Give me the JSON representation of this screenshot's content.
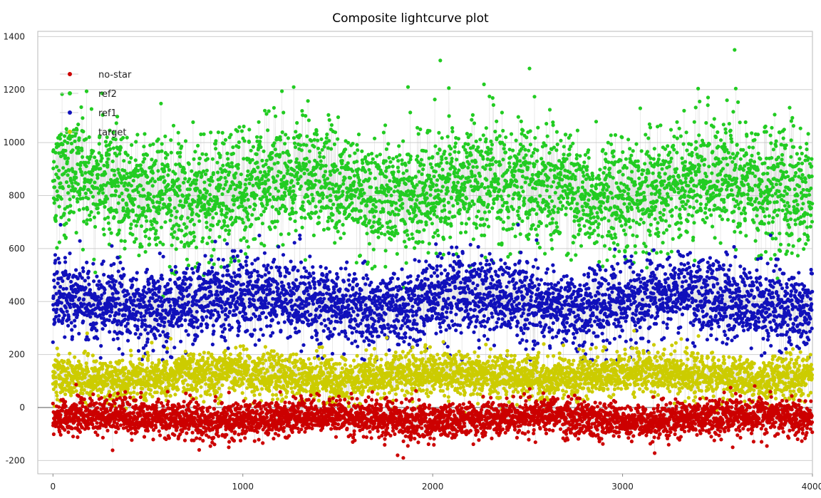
{
  "chart_data": {
    "type": "scatter",
    "title": "Composite lightcurve plot",
    "xlabel": "",
    "ylabel": "",
    "xlim": [
      -80,
      4000
    ],
    "ylim": [
      -250,
      1420
    ],
    "x_ticks": [
      0,
      1000,
      2000,
      3000,
      4000
    ],
    "y_ticks": [
      -200,
      0,
      200,
      400,
      600,
      800,
      1000,
      1200,
      1400
    ],
    "grid": true,
    "legend_position": "top-left",
    "n_points": 4000,
    "connecting_line_color": "#c8c8c8",
    "series": [
      {
        "name": "no-star",
        "color": "#cc0000",
        "mean": -40,
        "spread": 45,
        "min": -190,
        "max": 110,
        "notable_points": [
          [
            1815,
            -180
          ],
          [
            1845,
            -190
          ],
          [
            770,
            -160
          ],
          [
            3580,
            -150
          ],
          [
            3760,
            -145
          ]
        ]
      },
      {
        "name": "ref2",
        "color": "#22cc22",
        "mean": 830,
        "spread": 150,
        "min": 400,
        "max": 1350,
        "notable_points": [
          [
            3590,
            1350
          ],
          [
            2040,
            1310
          ],
          [
            2510,
            1280
          ],
          [
            1870,
            1210
          ],
          [
            2270,
            1220
          ],
          [
            580,
            420
          ],
          [
            60,
            690
          ]
        ]
      },
      {
        "name": "ref1",
        "color": "#1111bb",
        "mean": 400,
        "spread": 100,
        "min": 180,
        "max": 700,
        "notable_points": [
          [
            40,
            690
          ],
          [
            2450,
            690
          ],
          [
            310,
            610
          ],
          [
            3780,
            650
          ]
        ]
      },
      {
        "name": "target",
        "color": "#cccc00",
        "mean": 120,
        "spread": 55,
        "min": -60,
        "max": 290,
        "notable_points": [
          [
            180,
            280
          ],
          [
            3400,
            270
          ],
          [
            620,
            260
          ]
        ]
      }
    ]
  }
}
